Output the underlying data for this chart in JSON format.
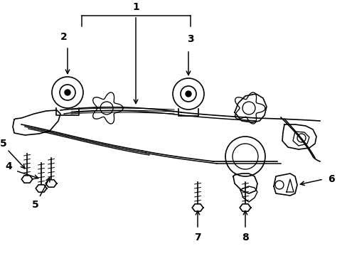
{
  "bg_color": "#ffffff",
  "line_color": "#000000",
  "line_width": 1.2,
  "fig_width": 4.89,
  "fig_height": 3.6,
  "dpi": 100
}
